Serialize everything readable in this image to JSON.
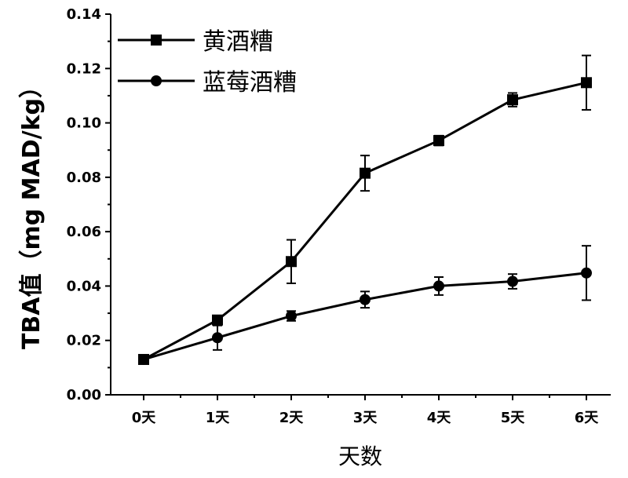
{
  "chart_data": {
    "type": "line",
    "xlabel": "天数",
    "ylabel": "TBA值（mg MAD/kg）",
    "categories": [
      "0天",
      "1天",
      "2天",
      "3天",
      "4天",
      "5天",
      "6天"
    ],
    "yticks": [
      "0.00",
      "0.02",
      "0.04",
      "0.06",
      "0.08",
      "0.10",
      "0.12",
      "0.14"
    ],
    "ylim": [
      0,
      0.14
    ],
    "legend_position": "top-left",
    "grid": false,
    "series": [
      {
        "name": "黄酒糟",
        "marker": "square",
        "values": [
          0.013,
          0.0275,
          0.049,
          0.0815,
          0.0935,
          0.1085,
          0.1148
        ],
        "errors": [
          0.0015,
          0.0015,
          0.008,
          0.0065,
          0.0018,
          0.0025,
          0.01
        ]
      },
      {
        "name": "蓝莓酒糟",
        "marker": "circle",
        "values": [
          0.013,
          0.021,
          0.029,
          0.035,
          0.04,
          0.0417,
          0.0448
        ],
        "errors": [
          0.0015,
          0.0045,
          0.0018,
          0.003,
          0.0033,
          0.0027,
          0.01
        ]
      }
    ]
  }
}
